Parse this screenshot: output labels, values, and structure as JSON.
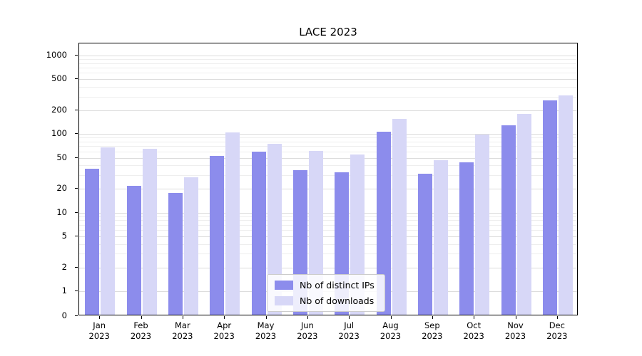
{
  "chart_data": {
    "type": "bar",
    "title": "LACE 2023",
    "scale": "symlog",
    "xlabel": "",
    "ylabel": "",
    "ylim": [
      0,
      1000
    ],
    "grid": true,
    "legend_position": "lower center",
    "categories": [
      "Jan",
      "Feb",
      "Mar",
      "Apr",
      "May",
      "Jun",
      "Jul",
      "Aug",
      "Sep",
      "Oct",
      "Nov",
      "Dec"
    ],
    "year": "2023",
    "y_ticks": [
      0,
      1,
      2,
      5,
      10,
      20,
      50,
      100,
      200,
      500,
      1000
    ],
    "y_minor": [
      3,
      4,
      6,
      7,
      8,
      9,
      30,
      40,
      60,
      70,
      80,
      90,
      300,
      400,
      600,
      700,
      800,
      900
    ],
    "series": [
      {
        "name": "Nb of distinct IPs",
        "color": "#8c8cec",
        "values": [
          35,
          21,
          17,
          51,
          57,
          33,
          31,
          103,
          30,
          42,
          125,
          260
        ]
      },
      {
        "name": "Nb of downloads",
        "color": "#d7d7f7",
        "values": [
          65,
          62,
          27,
          100,
          72,
          59,
          53,
          150,
          45,
          95,
          175,
          300
        ]
      }
    ]
  }
}
